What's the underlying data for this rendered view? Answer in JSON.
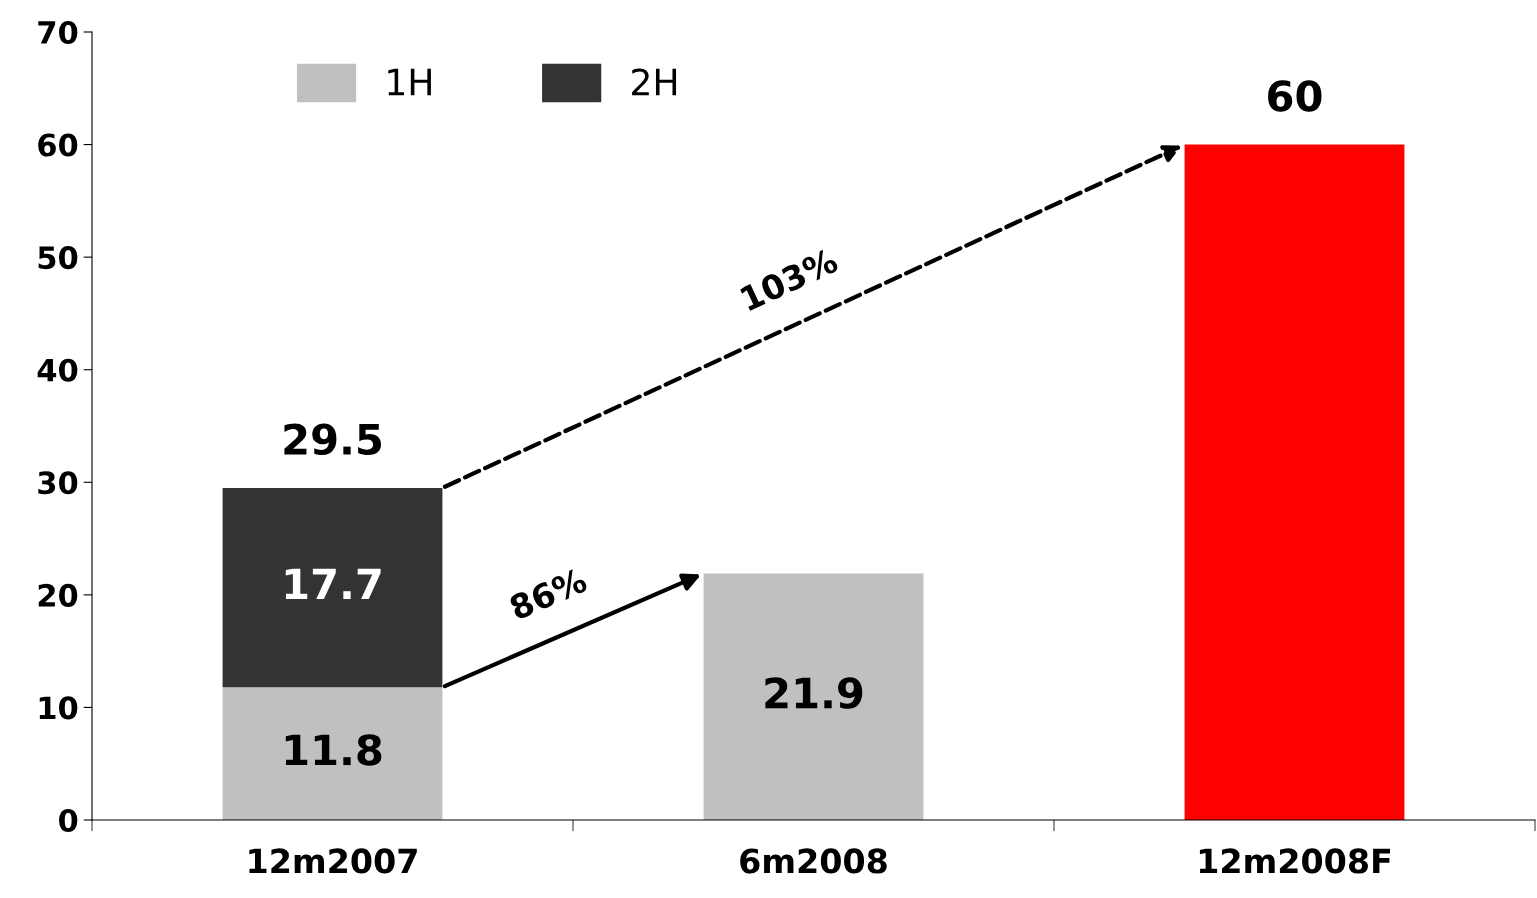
{
  "chart_data": {
    "type": "bar",
    "stacked": true,
    "categories": [
      "12m2007",
      "6m2008",
      "12m2008F"
    ],
    "series": [
      {
        "name": "1H",
        "color": "#c0c0c0",
        "values": [
          11.8,
          21.9,
          null
        ]
      },
      {
        "name": "2H",
        "color": "#333333",
        "values": [
          17.7,
          null,
          null
        ]
      },
      {
        "color": "#ff0000",
        "values": [
          null,
          null,
          60
        ]
      }
    ],
    "data_labels": true,
    "totals": [
      "29.5",
      null,
      null
    ],
    "ylim": [
      0,
      70
    ],
    "yticks": [
      0,
      10,
      20,
      30,
      40,
      50,
      60,
      70
    ],
    "grid": false,
    "legend": "top left",
    "annotations": [
      "86%",
      "103%"
    ]
  }
}
